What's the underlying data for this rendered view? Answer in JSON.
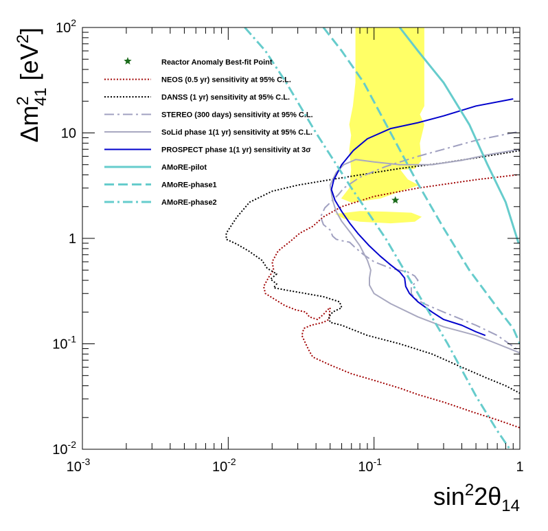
{
  "chart_data": {
    "type": "line",
    "x_scale": "log",
    "y_scale": "log",
    "xlim": [
      0.001,
      1
    ],
    "ylim": [
      0.01,
      100
    ],
    "x_ticks": [
      {
        "value": 0.001,
        "mant": "10",
        "exp": "-3"
      },
      {
        "value": 0.01,
        "mant": "10",
        "exp": "-2"
      },
      {
        "value": 0.1,
        "mant": "10",
        "exp": "-1"
      },
      {
        "value": 1,
        "mant": "1",
        "exp": ""
      }
    ],
    "y_ticks": [
      {
        "value": 0.01,
        "mant": "10",
        "exp": "-2"
      },
      {
        "value": 0.1,
        "mant": "10",
        "exp": "-1"
      },
      {
        "value": 1,
        "mant": "1",
        "exp": ""
      },
      {
        "value": 10,
        "mant": "10",
        "exp": ""
      },
      {
        "value": 100,
        "mant": "10",
        "exp": "2"
      }
    ],
    "xlabel": {
      "base": "sin",
      "sup1": "2",
      "mid": "2θ",
      "sub": "14"
    },
    "ylabel": {
      "pre": "Δm",
      "sup": "2",
      "sub": "41",
      "post": " [eV",
      "sup2": "2",
      "end": "]"
    },
    "grid": false,
    "legend_placement": "upper-left inside plot",
    "best_fit": {
      "x": 0.14,
      "y": 2.3,
      "color": "#1b6b1b"
    },
    "allowed_region": {
      "name": "Reactor anomaly allowed region",
      "color": "#ffff66",
      "polygons": [
        [
          [
            0.075,
            100
          ],
          [
            0.22,
            100
          ],
          [
            0.22,
            18
          ],
          [
            0.205,
            15
          ],
          [
            0.22,
            12
          ],
          [
            0.205,
            8
          ],
          [
            0.21,
            5.5
          ],
          [
            0.19,
            4.6
          ],
          [
            0.15,
            4.5
          ],
          [
            0.17,
            3.6
          ],
          [
            0.2,
            3.2
          ],
          [
            0.15,
            2.8
          ],
          [
            0.11,
            2.4
          ],
          [
            0.07,
            2.2
          ],
          [
            0.06,
            2.4
          ],
          [
            0.068,
            3.0
          ],
          [
            0.07,
            4.5
          ],
          [
            0.068,
            7
          ],
          [
            0.07,
            9.5
          ],
          [
            0.068,
            12
          ],
          [
            0.072,
            18
          ],
          [
            0.075,
            30
          ]
        ],
        [
          [
            0.055,
            1.7
          ],
          [
            0.08,
            1.8
          ],
          [
            0.12,
            1.78
          ],
          [
            0.18,
            1.74
          ],
          [
            0.21,
            1.6
          ],
          [
            0.19,
            1.45
          ],
          [
            0.13,
            1.4
          ],
          [
            0.08,
            1.45
          ],
          [
            0.062,
            1.55
          ]
        ]
      ]
    },
    "series": [
      {
        "name": "NEOS (0.5 yr) sensitivity at 95% C.L.",
        "color": "#a00000",
        "style": "dotted",
        "points": [
          [
            0.95,
            4.0
          ],
          [
            0.5,
            3.6
          ],
          [
            0.2,
            3.0
          ],
          [
            0.1,
            2.5
          ],
          [
            0.06,
            2.0
          ],
          [
            0.045,
            1.6
          ],
          [
            0.038,
            1.3
          ],
          [
            0.031,
            1.12
          ],
          [
            0.027,
            0.95
          ],
          [
            0.022,
            0.76
          ],
          [
            0.02,
            0.6
          ],
          [
            0.0205,
            0.5
          ],
          [
            0.019,
            0.43
          ],
          [
            0.0175,
            0.35
          ],
          [
            0.018,
            0.3
          ],
          [
            0.0195,
            0.28
          ],
          [
            0.0245,
            0.23
          ],
          [
            0.029,
            0.21
          ],
          [
            0.034,
            0.2
          ],
          [
            0.036,
            0.18
          ],
          [
            0.041,
            0.17
          ],
          [
            0.045,
            0.19
          ],
          [
            0.048,
            0.21
          ],
          [
            0.05,
            0.22
          ],
          [
            0.049,
            0.17
          ],
          [
            0.045,
            0.16
          ],
          [
            0.037,
            0.15
          ],
          [
            0.033,
            0.14
          ],
          [
            0.032,
            0.12
          ],
          [
            0.034,
            0.1
          ],
          [
            0.036,
            0.085
          ],
          [
            0.038,
            0.075
          ],
          [
            0.05,
            0.063
          ],
          [
            0.07,
            0.052
          ],
          [
            0.1,
            0.045
          ],
          [
            0.15,
            0.038
          ],
          [
            0.2,
            0.033
          ],
          [
            0.3,
            0.028
          ],
          [
            0.5,
            0.022
          ],
          [
            0.7,
            0.019
          ],
          [
            1.0,
            0.016
          ]
        ]
      },
      {
        "name": "DANSS (1 yr) sensitivity at 95% C.L.",
        "color": "#000000",
        "style": "dotted",
        "points": [
          [
            1.0,
            6.8
          ],
          [
            0.5,
            5.8
          ],
          [
            0.3,
            5.2
          ],
          [
            0.15,
            4.6
          ],
          [
            0.08,
            4.0
          ],
          [
            0.05,
            3.6
          ],
          [
            0.03,
            3.2
          ],
          [
            0.02,
            2.8
          ],
          [
            0.014,
            2.2
          ],
          [
            0.0115,
            1.6
          ],
          [
            0.0097,
            1.12
          ],
          [
            0.0097,
            0.98
          ],
          [
            0.0115,
            0.88
          ],
          [
            0.014,
            0.75
          ],
          [
            0.017,
            0.62
          ],
          [
            0.0185,
            0.52
          ],
          [
            0.0215,
            0.46
          ],
          [
            0.0195,
            0.41
          ],
          [
            0.0215,
            0.37
          ],
          [
            0.0205,
            0.34
          ],
          [
            0.026,
            0.32
          ],
          [
            0.034,
            0.3
          ],
          [
            0.045,
            0.28
          ],
          [
            0.058,
            0.25
          ],
          [
            0.06,
            0.22
          ],
          [
            0.052,
            0.2
          ],
          [
            0.049,
            0.18
          ],
          [
            0.05,
            0.16
          ],
          [
            0.06,
            0.15
          ],
          [
            0.09,
            0.12
          ],
          [
            0.15,
            0.1
          ],
          [
            0.25,
            0.08
          ],
          [
            0.4,
            0.06
          ],
          [
            0.6,
            0.047
          ],
          [
            0.8,
            0.04
          ],
          [
            1.0,
            0.034
          ]
        ]
      },
      {
        "name": "STEREO (300 days) sensitivity at 95% C.L.",
        "color": "#a0a0c0",
        "style": "dashdot",
        "points": [
          [
            0.95,
            10.2
          ],
          [
            0.5,
            8.5
          ],
          [
            0.3,
            7.0
          ],
          [
            0.2,
            6.0
          ],
          [
            0.12,
            4.8
          ],
          [
            0.08,
            3.8
          ],
          [
            0.062,
            3.0
          ],
          [
            0.057,
            2.6
          ],
          [
            0.052,
            2.3
          ],
          [
            0.046,
            1.95
          ],
          [
            0.043,
            1.6
          ],
          [
            0.045,
            1.35
          ],
          [
            0.05,
            1.2
          ],
          [
            0.052,
            1.05
          ],
          [
            0.055,
            0.98
          ],
          [
            0.06,
            0.95
          ],
          [
            0.068,
            0.92
          ],
          [
            0.074,
            0.82
          ],
          [
            0.085,
            0.7
          ],
          [
            0.1,
            0.6
          ],
          [
            0.13,
            0.52
          ],
          [
            0.17,
            0.48
          ],
          [
            0.19,
            0.44
          ],
          [
            0.2,
            0.4
          ],
          [
            0.18,
            0.35
          ],
          [
            0.18,
            0.3
          ],
          [
            0.19,
            0.27
          ],
          [
            0.22,
            0.24
          ],
          [
            0.3,
            0.2
          ],
          [
            0.4,
            0.17
          ],
          [
            0.5,
            0.15
          ],
          [
            0.7,
            0.12
          ],
          [
            1.0,
            0.085
          ]
        ]
      },
      {
        "name": "SoLid phase 1(1 yr) sensitivity at 95% C.L.",
        "color": "#a8a8c0",
        "style": "solid",
        "points": [
          [
            1.0,
            7.0
          ],
          [
            0.6,
            6.2
          ],
          [
            0.4,
            5.5
          ],
          [
            0.25,
            5.0
          ],
          [
            0.15,
            5.0
          ],
          [
            0.1,
            5.3
          ],
          [
            0.075,
            5.6
          ],
          [
            0.062,
            5.0
          ],
          [
            0.055,
            4.2
          ],
          [
            0.05,
            3.2
          ],
          [
            0.052,
            2.3
          ],
          [
            0.055,
            1.8
          ],
          [
            0.06,
            1.45
          ],
          [
            0.07,
            1.1
          ],
          [
            0.08,
            0.85
          ],
          [
            0.09,
            0.62
          ],
          [
            0.095,
            0.5
          ],
          [
            0.093,
            0.42
          ],
          [
            0.093,
            0.36
          ],
          [
            0.1,
            0.3
          ],
          [
            0.13,
            0.24
          ],
          [
            0.2,
            0.18
          ],
          [
            0.3,
            0.145
          ],
          [
            0.5,
            0.12
          ],
          [
            0.7,
            0.1
          ],
          [
            1.0,
            0.082
          ]
        ]
      },
      {
        "name": "PROSPECT phase 1(1 yr) sensitivity at 3σ",
        "color": "#0000cc",
        "style": "solid",
        "points": [
          [
            0.9,
            21.0
          ],
          [
            0.5,
            18.0
          ],
          [
            0.3,
            14.5
          ],
          [
            0.2,
            12.5
          ],
          [
            0.13,
            11.0
          ],
          [
            0.09,
            8.8
          ],
          [
            0.072,
            6.8
          ],
          [
            0.06,
            5.0
          ],
          [
            0.053,
            3.6
          ],
          [
            0.051,
            2.9
          ],
          [
            0.054,
            2.3
          ],
          [
            0.06,
            1.8
          ],
          [
            0.068,
            1.4
          ],
          [
            0.078,
            1.1
          ],
          [
            0.092,
            0.86
          ],
          [
            0.11,
            0.68
          ],
          [
            0.13,
            0.56
          ],
          [
            0.15,
            0.48
          ],
          [
            0.162,
            0.42
          ],
          [
            0.165,
            0.35
          ],
          [
            0.175,
            0.3
          ],
          [
            0.2,
            0.25
          ],
          [
            0.25,
            0.2
          ],
          [
            0.3,
            0.17
          ],
          [
            0.4,
            0.15
          ],
          [
            0.5,
            0.13
          ],
          [
            0.58,
            0.12
          ]
        ]
      },
      {
        "name": "AMoRE-pilot",
        "color": "#66cccc",
        "style": "solid",
        "points": [
          [
            0.15,
            100
          ],
          [
            0.2,
            60
          ],
          [
            0.3,
            30
          ],
          [
            0.45,
            12
          ],
          [
            0.6,
            5
          ],
          [
            0.8,
            2.2
          ],
          [
            0.98,
            0.9
          ]
        ]
      },
      {
        "name": "AMoRE-phase1",
        "color": "#66cccc",
        "style": "dashed",
        "points": [
          [
            0.045,
            100
          ],
          [
            0.06,
            60
          ],
          [
            0.085,
            30
          ],
          [
            0.13,
            10
          ],
          [
            0.2,
            3.3
          ],
          [
            0.3,
            1.25
          ],
          [
            0.45,
            0.5
          ],
          [
            0.7,
            0.22
          ],
          [
            0.9,
            0.14
          ],
          [
            1.0,
            0.1
          ]
        ]
      },
      {
        "name": "AMoRE-phase2",
        "color": "#66cccc",
        "style": "dashdot",
        "points": [
          [
            0.013,
            100
          ],
          [
            0.018,
            60
          ],
          [
            0.025,
            30
          ],
          [
            0.04,
            10
          ],
          [
            0.07,
            3.0
          ],
          [
            0.12,
            1.0
          ],
          [
            0.2,
            0.3
          ],
          [
            0.32,
            0.1
          ],
          [
            0.5,
            0.032
          ],
          [
            0.7,
            0.015
          ],
          [
            0.9,
            0.009
          ]
        ]
      }
    ],
    "legend": [
      {
        "label": "Reactor Anomaly Best-fit Point",
        "marker": "star",
        "color": "#1b6b1b"
      },
      {
        "label": "NEOS (0.5 yr) sensitivity at 95% C.L.",
        "color": "#a00000",
        "style": "dotted"
      },
      {
        "label": "DANSS (1 yr) sensitivity at 95% C.L.",
        "color": "#000000",
        "style": "dotted"
      },
      {
        "label": "STEREO (300 days) sensitivity at 95% C.L.",
        "color": "#a0a0c0",
        "style": "dashdot"
      },
      {
        "label": "SoLid phase 1(1 yr) sensitivity at 95% C.L.",
        "color": "#a8a8c0",
        "style": "solid"
      },
      {
        "label": "PROSPECT phase 1(1 yr) sensitivity at 3σ",
        "color": "#0000cc",
        "style": "solid"
      },
      {
        "label": "AMoRE-pilot",
        "color": "#66cccc",
        "style": "solid"
      },
      {
        "label": "AMoRE-phase1",
        "color": "#66cccc",
        "style": "dashed"
      },
      {
        "label": "AMoRE-phase2",
        "color": "#66cccc",
        "style": "dashdot"
      }
    ]
  }
}
